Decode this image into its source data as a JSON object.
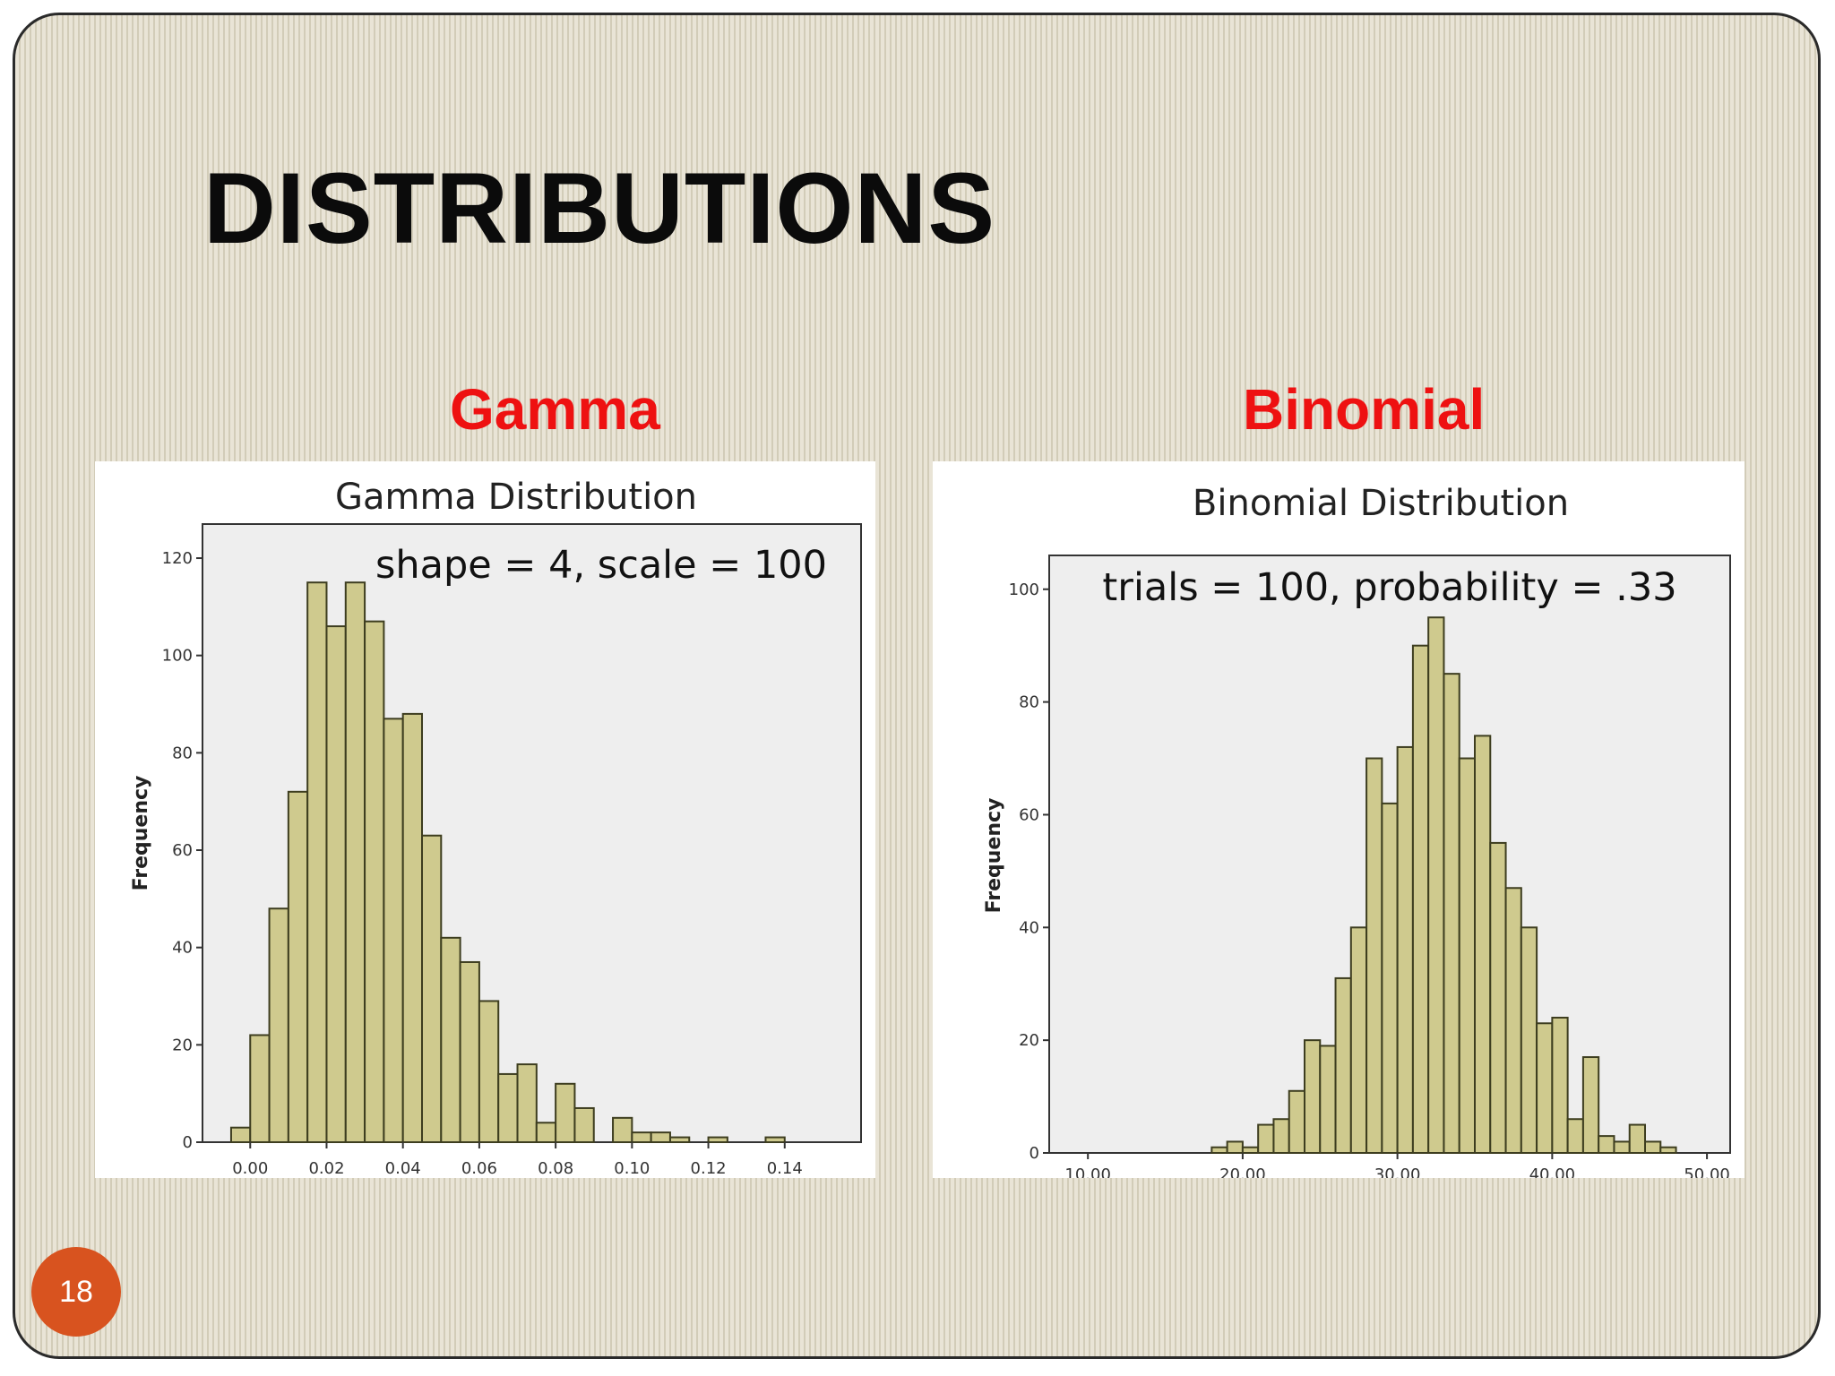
{
  "slide": {
    "title": "DISTRIBUTIONS",
    "page_number": "18",
    "colors": {
      "title": "#0b0b0b",
      "subheading": "#ee1111",
      "page_badge": "#d8531f",
      "bar_fill": "#cfca8e",
      "bar_stroke": "#3d3d1f",
      "plot_bg": "#eeeeee"
    }
  },
  "left": {
    "heading": "Gamma"
  },
  "right": {
    "heading": "Binomial"
  },
  "chart_data": [
    {
      "type": "bar",
      "title": "Gamma Distribution",
      "annotation": "shape = 4, scale = 100",
      "xlabel": "",
      "ylabel": "Frequency",
      "bin_start": -0.005,
      "bin_width": 0.005,
      "values": [
        3,
        22,
        48,
        72,
        115,
        106,
        115,
        107,
        87,
        88,
        63,
        42,
        37,
        29,
        14,
        16,
        4,
        12,
        7,
        0,
        5,
        2,
        2,
        1,
        0,
        1,
        0,
        0,
        1
      ],
      "xlim": [
        -0.0125,
        0.16
      ],
      "ylim": [
        0,
        127
      ],
      "x_ticks": [
        0,
        0.02,
        0.04,
        0.06,
        0.08,
        0.1,
        0.12,
        0.14
      ],
      "x_tick_labels": [
        "0.00",
        "0.02",
        "0.04",
        "0.06",
        "0.08",
        "0.10",
        "0.12",
        "0.14"
      ],
      "y_ticks": [
        0,
        20,
        40,
        60,
        80,
        100,
        120
      ],
      "y_tick_labels": [
        "0",
        "20",
        "40",
        "60",
        "80",
        "100",
        "120"
      ],
      "grid": false,
      "legend": "none"
    },
    {
      "type": "bar",
      "title": "Binomial Distribution",
      "annotation": "trials = 100, probability = .33",
      "xlabel": "",
      "ylabel": "Frequency",
      "bin_start": 18,
      "bin_width": 1,
      "values": [
        1,
        2,
        1,
        5,
        6,
        11,
        20,
        19,
        31,
        40,
        70,
        62,
        72,
        90,
        95,
        85,
        70,
        74,
        55,
        47,
        40,
        23,
        24,
        6,
        17,
        3,
        2,
        5,
        2,
        1
      ],
      "xlim": [
        7.5,
        51.5
      ],
      "ylim": [
        0,
        106
      ],
      "x_ticks": [
        10,
        20,
        30,
        40,
        50
      ],
      "x_tick_labels": [
        "10.00",
        "20.00",
        "30.00",
        "40.00",
        "50.00"
      ],
      "y_ticks": [
        0,
        20,
        40,
        60,
        80,
        100
      ],
      "y_tick_labels": [
        "0",
        "20",
        "40",
        "60",
        "80",
        "100"
      ],
      "grid": false,
      "legend": "none"
    }
  ]
}
